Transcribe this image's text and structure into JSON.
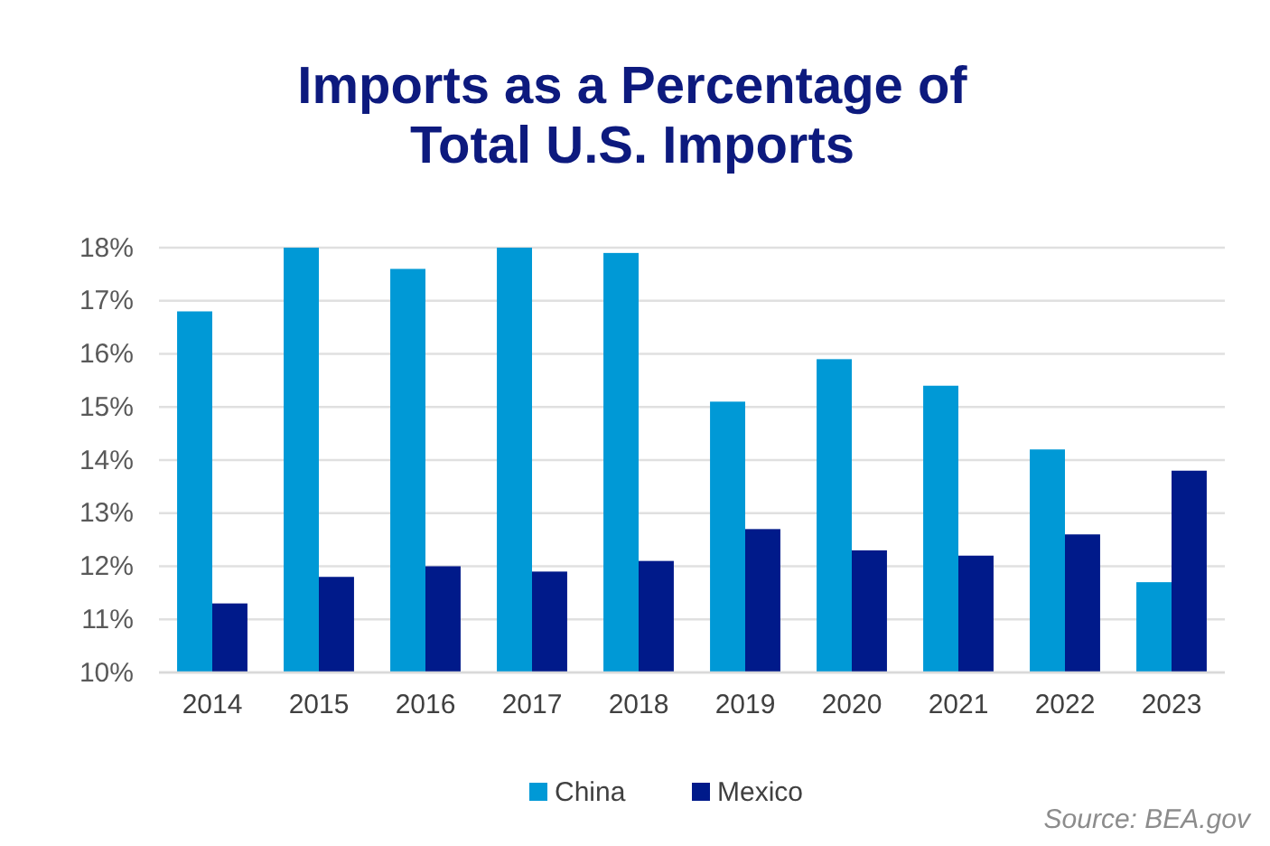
{
  "chart_data": {
    "type": "bar",
    "title": "Imports as a Percentage of Total U.S. Imports",
    "categories": [
      "2014",
      "2015",
      "2016",
      "2017",
      "2018",
      "2019",
      "2020",
      "2021",
      "2022",
      "2023"
    ],
    "series": [
      {
        "name": "China",
        "color": "#0099d6",
        "values": [
          16.8,
          18,
          17.6,
          18,
          17.9,
          15.1,
          15.9,
          15.4,
          14.2,
          11.7
        ]
      },
      {
        "name": "Mexico",
        "color": "#001a8a",
        "values": [
          11.3,
          11.8,
          12.0,
          11.9,
          12.1,
          12.7,
          12.3,
          12.2,
          12.6,
          13.8
        ]
      }
    ],
    "ylim": [
      10,
      18
    ],
    "yticks": [
      {
        "value": 10,
        "label": "10%"
      },
      {
        "value": 11,
        "label": "11%"
      },
      {
        "value": 12,
        "label": "12%"
      },
      {
        "value": 13,
        "label": "13%"
      },
      {
        "value": 14,
        "label": "14%"
      },
      {
        "value": 15,
        "label": "15%"
      },
      {
        "value": 16,
        "label": "16%"
      },
      {
        "value": 17,
        "label": "17%"
      },
      {
        "value": 18,
        "label": "18%"
      }
    ],
    "grid": "y",
    "legend": "bottom",
    "annotations": [
      "Source: BEA.gov"
    ]
  }
}
